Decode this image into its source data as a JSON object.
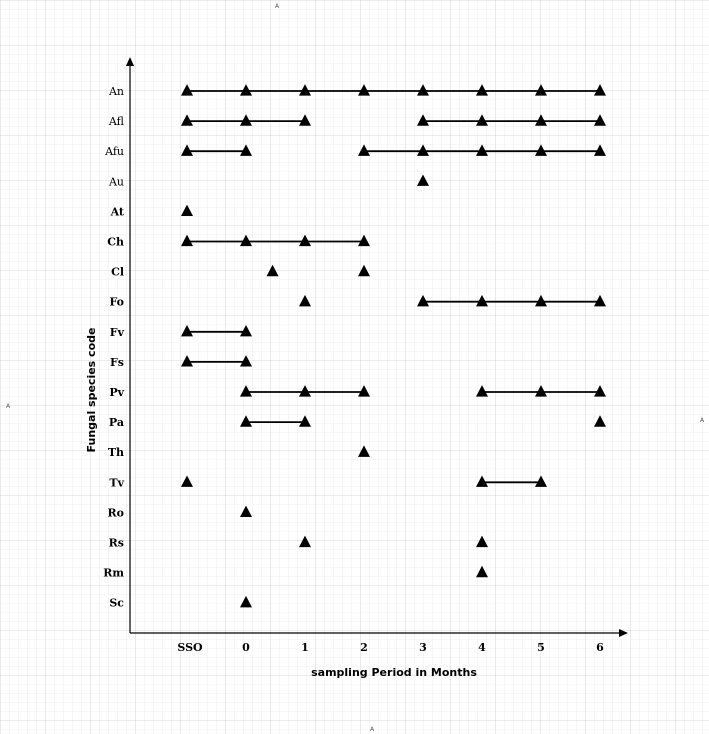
{
  "chart_data": {
    "type": "scatter",
    "xlabel": "sampling Period in Months",
    "ylabel": "Fungal species code",
    "x_categories": [
      "SSO",
      "0",
      "1",
      "2",
      "3",
      "4",
      "5",
      "6"
    ],
    "y_categories": [
      "An",
      "Afl",
      "Afu",
      "Au",
      "At",
      "Ch",
      "Cl",
      "Fo",
      "Fv",
      "Fs",
      "Pv",
      "Pa",
      "Th",
      "Tv",
      "Ro",
      "Rs",
      "Rm",
      "Sc"
    ],
    "bold_y_labels": [
      "At",
      "Ch",
      "Cl",
      "Fo",
      "Fv",
      "Fs",
      "Pv",
      "Pa",
      "Th",
      "Tv",
      "Ro",
      "Rs",
      "Rm",
      "Sc"
    ],
    "grid": true,
    "marker": "triangle",
    "series": [
      {
        "species": "An",
        "x": [
          -1,
          0,
          1,
          2,
          3,
          4,
          5,
          6
        ],
        "connected": [
          [
            -1,
            0,
            1,
            2,
            3,
            4,
            5,
            6
          ]
        ]
      },
      {
        "species": "Afl",
        "x": [
          -1,
          0,
          1,
          3,
          4,
          5,
          6
        ],
        "connected": [
          [
            -1,
            0,
            1
          ],
          [
            3,
            4,
            5,
            6
          ]
        ]
      },
      {
        "species": "Afu",
        "x": [
          -1,
          0,
          2,
          3,
          4,
          5,
          6
        ],
        "connected": [
          [
            -1,
            0
          ],
          [
            2,
            3,
            4,
            5,
            6
          ]
        ]
      },
      {
        "species": "Au",
        "x": [
          3
        ],
        "connected": []
      },
      {
        "species": "At",
        "x": [
          -1
        ],
        "connected": []
      },
      {
        "species": "Ch",
        "x": [
          -1,
          0,
          1,
          2
        ],
        "connected": [
          [
            -1,
            0,
            1,
            2
          ]
        ]
      },
      {
        "species": "Cl",
        "x": [
          0.45,
          2
        ],
        "connected": []
      },
      {
        "species": "Fo",
        "x": [
          1,
          3,
          4,
          5,
          6
        ],
        "connected": [
          [
            3,
            4,
            5,
            6
          ]
        ]
      },
      {
        "species": "Fv",
        "x": [
          -1,
          0
        ],
        "connected": [
          [
            -1,
            0
          ]
        ]
      },
      {
        "species": "Fs",
        "x": [
          -1,
          0
        ],
        "connected": [
          [
            -1,
            0
          ]
        ]
      },
      {
        "species": "Pv",
        "x": [
          0,
          1,
          2,
          4,
          5,
          6
        ],
        "connected": [
          [
            0,
            1,
            2
          ],
          [
            4,
            5,
            6
          ]
        ]
      },
      {
        "species": "Pa",
        "x": [
          0,
          1,
          6
        ],
        "connected": [
          [
            0,
            1
          ]
        ]
      },
      {
        "species": "Th",
        "x": [
          2
        ],
        "connected": []
      },
      {
        "species": "Tv",
        "x": [
          -1,
          4,
          5
        ],
        "connected": [
          [
            4,
            5
          ]
        ]
      },
      {
        "species": "Ro",
        "x": [
          0
        ],
        "connected": []
      },
      {
        "species": "Rs",
        "x": [
          1,
          4
        ],
        "connected": []
      },
      {
        "species": "Rm",
        "x": [
          4
        ],
        "connected": []
      },
      {
        "species": "Sc",
        "x": [
          0
        ],
        "connected": []
      }
    ]
  },
  "page_marks": [
    "A",
    "A",
    "A",
    "A"
  ]
}
